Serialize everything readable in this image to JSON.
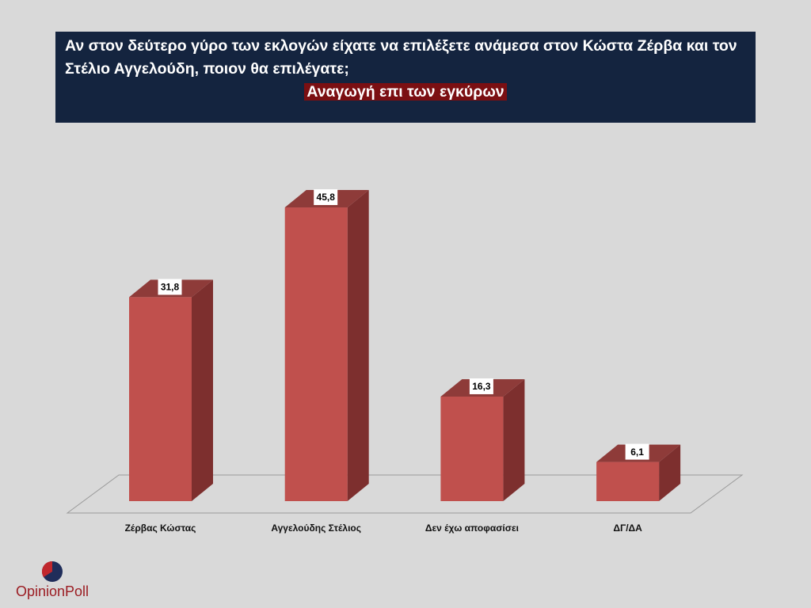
{
  "chart_data": {
    "type": "bar3d",
    "title": "Αν στον δεύτερο γύρο των εκλογών είχατε να επιλέξετε ανάμεσα στον Κώστα Ζέρβα και τον Στέλιο Αγγελούδη, ποιον θα επιλέγατε;",
    "subtitle": "Αναγωγή επι των εγκύρων",
    "categories": [
      "Ζέρβας Κώστας",
      "Αγγελούδης Στέλιος",
      "Δεν έχω αποφασίσει",
      "ΔΓ/ΔΑ"
    ],
    "values": [
      31.8,
      45.8,
      16.3,
      6.1
    ],
    "value_labels": [
      "31,8",
      "45,8",
      "16,3",
      "6,1"
    ],
    "color": "#c0504d",
    "brand": "OpinionPoll"
  }
}
